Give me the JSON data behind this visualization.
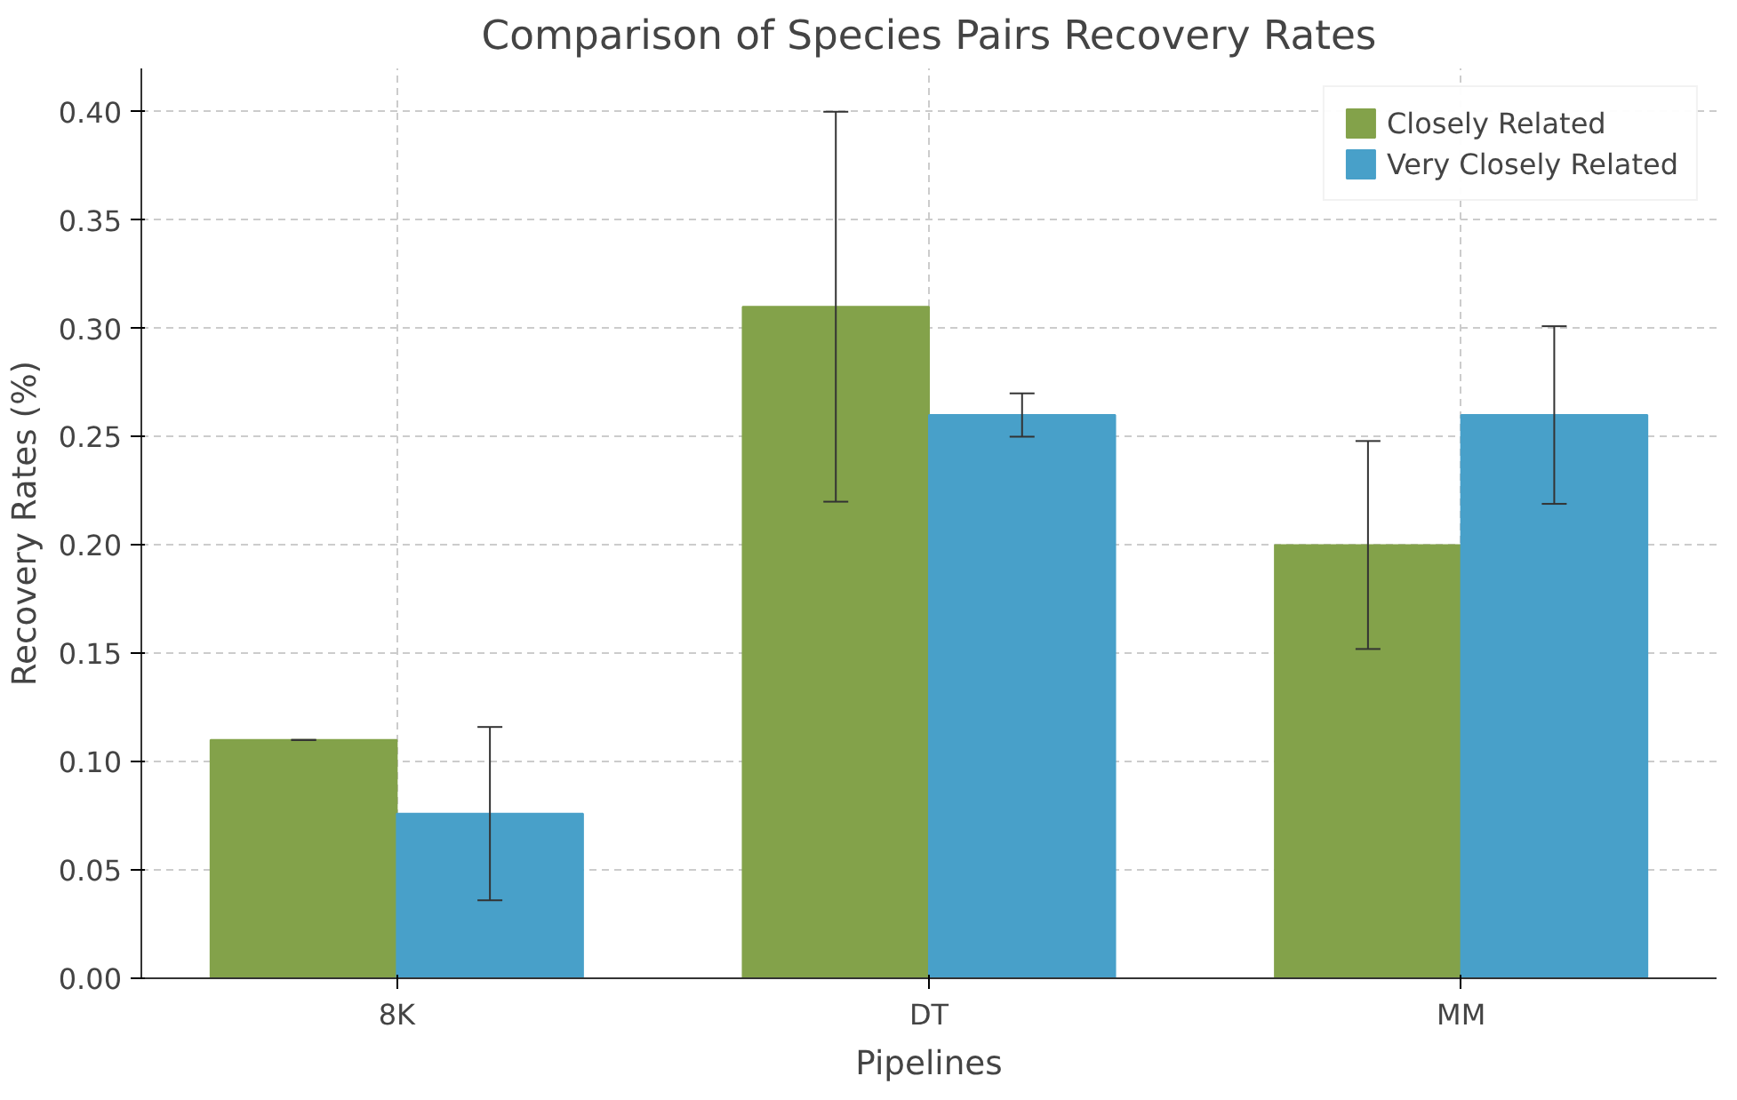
{
  "chart_data": {
    "type": "bar",
    "title": "Comparison of Species Pairs Recovery Rates",
    "xlabel": "Pipelines",
    "ylabel": "Recovery Rates (%)",
    "categories": [
      "8K",
      "DT",
      "MM"
    ],
    "series": [
      {
        "name": "Closely Related",
        "color": "#83a24a",
        "values": [
          0.11,
          0.31,
          0.2
        ],
        "errors": [
          0.0,
          0.09,
          0.048
        ]
      },
      {
        "name": "Very Closely Related",
        "color": "#48a0c9",
        "values": [
          0.076,
          0.26,
          0.26
        ],
        "errors": [
          0.04,
          0.01,
          0.041
        ]
      }
    ],
    "ylim": [
      0,
      0.42
    ],
    "yticks": [
      {
        "value": 0,
        "label": "0.00"
      },
      {
        "value": 0.05,
        "label": "0.05"
      },
      {
        "value": 0.1,
        "label": "0.10"
      },
      {
        "value": 0.15,
        "label": "0.15"
      },
      {
        "value": 0.2,
        "label": "0.20"
      },
      {
        "value": 0.25,
        "label": "0.25"
      },
      {
        "value": 0.3,
        "label": "0.30"
      },
      {
        "value": 0.35,
        "label": "0.35"
      },
      {
        "value": 0.4,
        "label": "0.40"
      }
    ],
    "grid": true,
    "legend": "top right"
  }
}
